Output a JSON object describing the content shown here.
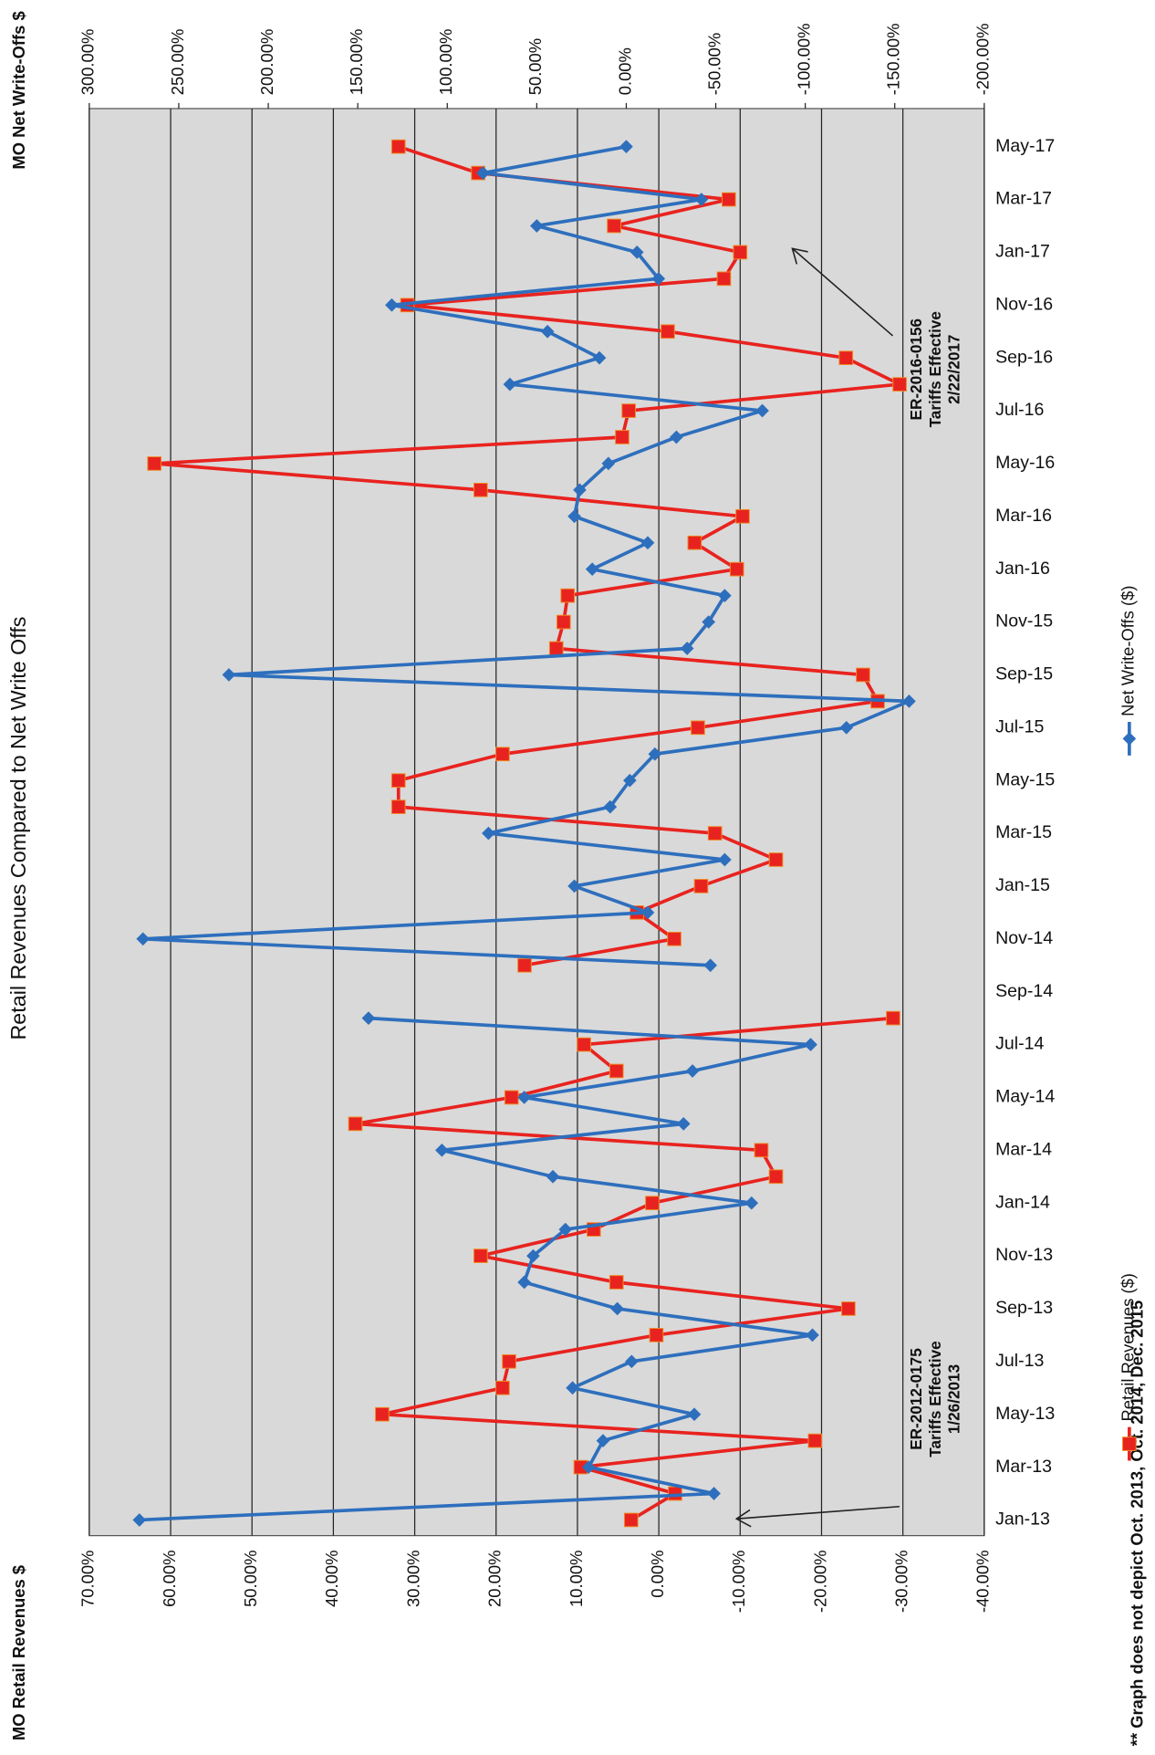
{
  "chart_data": {
    "type": "line",
    "title": "Retail Revenues Compared to Net Write Offs",
    "ylabel": "MO Retail Revenues $",
    "y2label": "MO Net Write-Offs $",
    "footnote": "** Graph does not depict Oct. 2013, Oct. 2014, Dec. 2015",
    "categories": [
      "Jan-13",
      null,
      "Mar-13",
      null,
      "May-13",
      null,
      "Jul-13",
      null,
      "Sep-13",
      null,
      "Nov-13",
      null,
      "Jan-14",
      null,
      "Mar-14",
      null,
      "May-14",
      null,
      "Jul-14",
      null,
      "Sep-14",
      null,
      "Nov-14",
      null,
      "Jan-15",
      null,
      "Mar-15",
      null,
      "May-15",
      null,
      "Jul-15",
      null,
      "Sep-15",
      null,
      "Nov-15",
      null,
      "Jan-16",
      null,
      "Mar-16",
      null,
      "May-16",
      null,
      "Jul-16",
      null,
      "Sep-16",
      null,
      "Nov-16",
      null,
      "Jan-17",
      null,
      "Mar-17",
      null,
      "May-17"
    ],
    "series": [
      {
        "name": "Retail Revenues ($)",
        "color": "#e8231f",
        "marker": "square",
        "values": [
          3.4,
          -2,
          9.6,
          -19.2,
          34,
          19.2,
          18.4,
          0.3,
          -23.3,
          5.2,
          21.9,
          8,
          0.8,
          -14.4,
          -12.6,
          37.3,
          18.1,
          5.2,
          9.2,
          -28.8,
          null,
          16.5,
          -1.9,
          2.7,
          -5.2,
          -14.4,
          -6.9,
          32,
          32,
          19.2,
          -4.8,
          -26.9,
          -25.1,
          12.6,
          11.7,
          11.2,
          -9.6,
          -4.4,
          -10.3,
          21.9,
          62,
          4.5,
          3.7,
          -29.6,
          -23,
          -1.1,
          30.9,
          -8,
          -10,
          5.5,
          -8.6,
          22.2,
          32
        ]
      },
      {
        "name": "Net Write-Offs ($)",
        "color": "#2e6fbd",
        "marker": "diamond",
        "axis": "y2",
        "values": [
          272,
          -49,
          21,
          13,
          -38,
          30,
          -3,
          -104,
          5,
          57,
          52,
          34,
          -70,
          41,
          103,
          -32,
          57,
          -37,
          -103,
          144,
          null,
          -47,
          270,
          -12,
          29,
          -55,
          77,
          9,
          -2,
          -16,
          -123,
          -158,
          222,
          -34,
          -46,
          -55,
          19,
          -12,
          29,
          26,
          10,
          -28,
          -76,
          65,
          15,
          44,
          131,
          -18,
          -6,
          50,
          -42,
          80,
          0
        ]
      }
    ],
    "ylim": [
      -40,
      70
    ],
    "yticks": [
      {
        "value": -40,
        "label": "-40.00%"
      },
      {
        "value": -30,
        "label": "-30.00%"
      },
      {
        "value": -20,
        "label": "-20.00%"
      },
      {
        "value": -10,
        "label": "-10.00%"
      },
      {
        "value": 0,
        "label": "0.00%"
      },
      {
        "value": 10,
        "label": "10.00%"
      },
      {
        "value": 20,
        "label": "20.00%"
      },
      {
        "value": 30,
        "label": "30.00%"
      },
      {
        "value": 40,
        "label": "40.00%"
      },
      {
        "value": 50,
        "label": "50.00%"
      },
      {
        "value": 60,
        "label": "60.00%"
      },
      {
        "value": 70,
        "label": "70.00%"
      }
    ],
    "y2lim": [
      -200,
      300
    ],
    "y2ticks": [
      {
        "value": -200,
        "label": "-200.00%"
      },
      {
        "value": -150,
        "label": "-150.00%"
      },
      {
        "value": -100,
        "label": "-100.00%"
      },
      {
        "value": -50,
        "label": "-50.00%"
      },
      {
        "value": 0,
        "label": "0.00%"
      },
      {
        "value": 50,
        "label": "50.00%"
      },
      {
        "value": 100,
        "label": "100.00%"
      },
      {
        "value": 150,
        "label": "150.00%"
      },
      {
        "value": 200,
        "label": "200.00%"
      },
      {
        "value": 250,
        "label": "250.00%"
      },
      {
        "value": 300,
        "label": "300.00%"
      }
    ],
    "grid": true,
    "annotations": [
      {
        "lines": [
          "ER-2012-0175",
          "Tariffs Effective",
          "1/26/2013"
        ]
      },
      {
        "lines": [
          "ER-2016-0156",
          "Tariffs Effective",
          "2/22/2017"
        ]
      }
    ]
  }
}
